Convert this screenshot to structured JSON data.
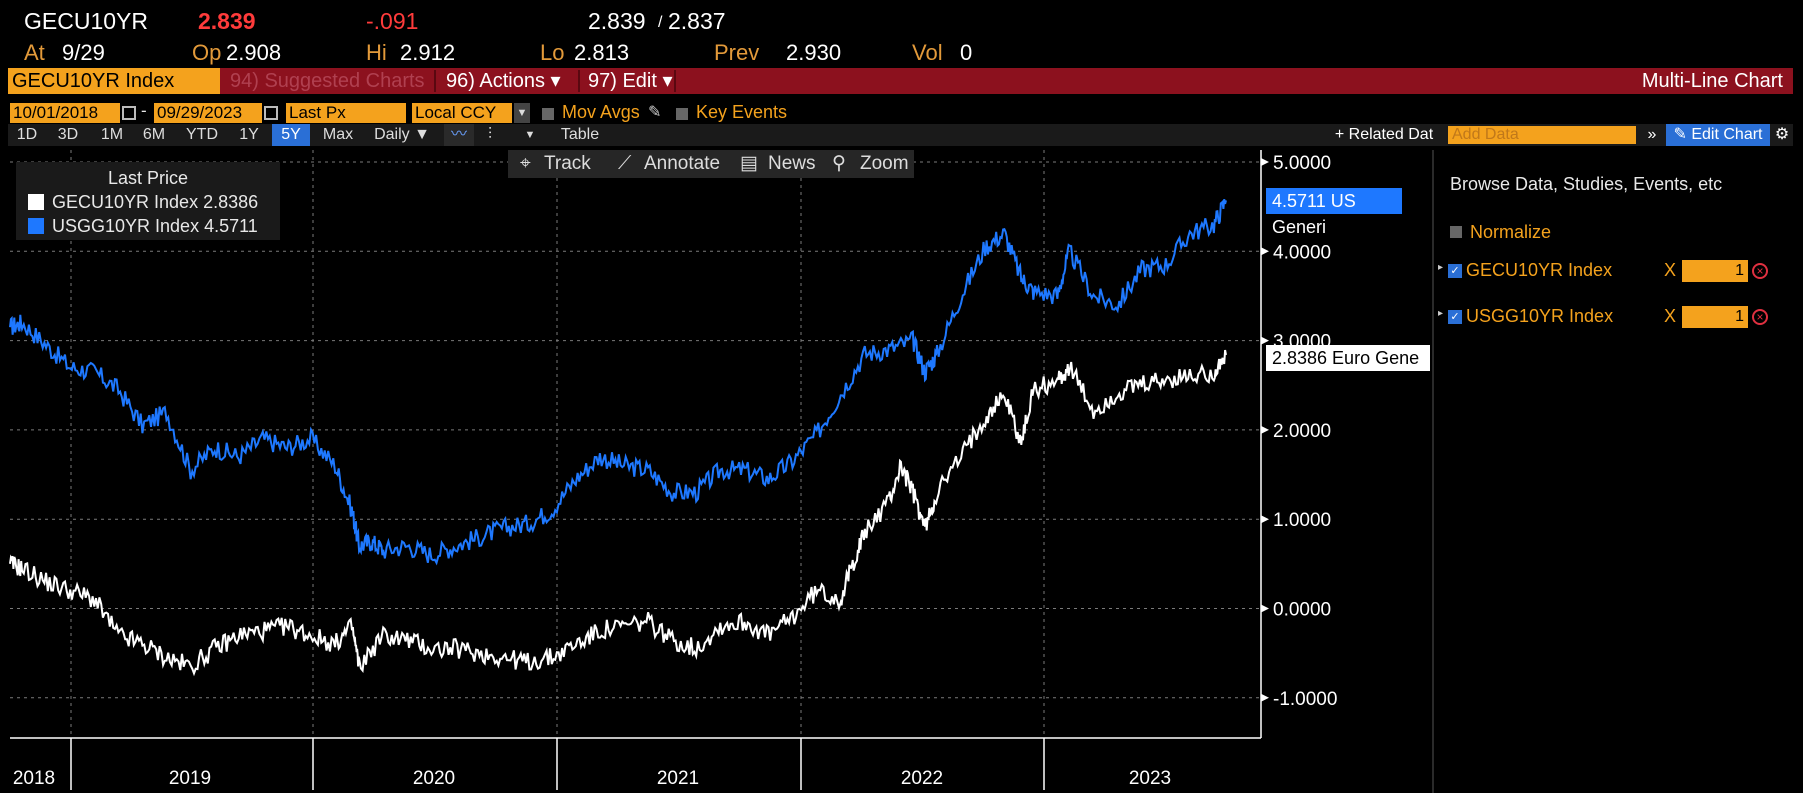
{
  "quote": {
    "ticker": "GECU10YR",
    "last": "2.839",
    "change": "-.091",
    "bid_ask": "2.839",
    "bid_ask_sep": "/",
    "ask": "2.837",
    "at_label": "At",
    "at_value": "9/29",
    "open_label": "Op",
    "open_value": "2.908",
    "high_label": "Hi",
    "high_value": "2.912",
    "low_label": "Lo",
    "low_value": "2.813",
    "prev_label": "Prev",
    "prev_value": "2.930",
    "vol_label": "Vol",
    "vol_value": "0"
  },
  "function_bar": {
    "security": "GECU10YR Index",
    "suggested": "94) Suggested Charts",
    "actions": "96) Actions ▾",
    "edit": "97) Edit ▾",
    "title": "Multi-Line Chart"
  },
  "controls": {
    "start_date": "10/01/2018",
    "dash": "-",
    "end_date": "09/29/2023",
    "field": "Last Px",
    "currency": "Local CCY",
    "mov_avgs": "Mov Avgs",
    "key_events": "Key Events"
  },
  "periods": [
    "1D",
    "3D",
    "1M",
    "6M",
    "YTD",
    "1Y",
    "5Y",
    "Max"
  ],
  "selected_period": "5Y",
  "frequency": "Daily ▼",
  "table_label": "Table",
  "related_data": "+ Related Dat",
  "add_data_placeholder": "Add Data",
  "edit_chart": "✎ Edit Chart",
  "chart_toolbar": {
    "track": "Track",
    "annotate": "Annotate",
    "news": "News",
    "zoom": "Zoom"
  },
  "legend": {
    "title": "Last Price",
    "items": [
      {
        "label": "GECU10YR Index 2.8386",
        "color": "#ffffff"
      },
      {
        "label": "USGG10YR Index 4.5711",
        "color": "#1e78ff"
      }
    ]
  },
  "value_tags": {
    "us": "4.5711 US Generi",
    "eu": "2.8386 Euro Gene"
  },
  "right_panel": {
    "browse": "Browse Data, Studies, Events, etc",
    "normalize": "Normalize",
    "series": [
      {
        "name": "GECU10YR Index",
        "x": "X",
        "factor": "1"
      },
      {
        "name": "USGG10YR Index",
        "x": "X",
        "factor": "1"
      }
    ]
  },
  "chart_data": {
    "type": "line",
    "y_ticks": [
      "5.0000",
      "4.0000",
      "3.0000",
      "2.0000",
      "1.0000",
      "0.0000",
      "-1.0000"
    ],
    "ylim": [
      -1.4,
      5.1
    ],
    "x_labels": [
      "2018",
      "2019",
      "2020",
      "2021",
      "2022",
      "2023"
    ],
    "xlim": [
      2018.75,
      2023.85
    ],
    "grid": true,
    "series": [
      {
        "name": "USGG10YR Index",
        "color": "#1e78ff",
        "x": [
          2018.75,
          2018.8,
          2018.9,
          2019.0,
          2019.1,
          2019.2,
          2019.3,
          2019.4,
          2019.5,
          2019.6,
          2019.7,
          2019.8,
          2019.9,
          2020.0,
          2020.1,
          2020.17,
          2020.2,
          2020.25,
          2020.3,
          2020.4,
          2020.5,
          2020.6,
          2020.7,
          2020.8,
          2020.9,
          2021.0,
          2021.1,
          2021.2,
          2021.3,
          2021.4,
          2021.5,
          2021.6,
          2021.7,
          2021.8,
          2021.9,
          2022.0,
          2022.1,
          2022.2,
          2022.3,
          2022.4,
          2022.5,
          2022.55,
          2022.6,
          2022.7,
          2022.8,
          2022.88,
          2022.95,
          2023.0,
          2023.1,
          2023.15,
          2023.25,
          2023.35,
          2023.45,
          2023.55,
          2023.65,
          2023.75,
          2023.8
        ],
        "values": [
          3.15,
          3.2,
          2.95,
          2.7,
          2.65,
          2.45,
          2.05,
          2.2,
          1.55,
          1.8,
          1.7,
          1.9,
          1.8,
          1.9,
          1.6,
          1.1,
          0.7,
          0.75,
          0.65,
          0.7,
          0.6,
          0.7,
          0.8,
          0.9,
          0.95,
          1.1,
          1.45,
          1.7,
          1.6,
          1.55,
          1.3,
          1.3,
          1.55,
          1.55,
          1.45,
          1.65,
          1.95,
          2.4,
          2.85,
          2.9,
          3.0,
          2.65,
          2.85,
          3.5,
          4.05,
          4.2,
          3.7,
          3.55,
          3.5,
          4.0,
          3.5,
          3.4,
          3.8,
          3.85,
          4.2,
          4.3,
          4.57
        ]
      },
      {
        "name": "GECU10YR Index",
        "color": "#ffffff",
        "x": [
          2018.75,
          2018.8,
          2018.9,
          2019.0,
          2019.1,
          2019.2,
          2019.3,
          2019.4,
          2019.5,
          2019.6,
          2019.7,
          2019.8,
          2019.9,
          2020.0,
          2020.1,
          2020.17,
          2020.2,
          2020.3,
          2020.4,
          2020.5,
          2020.6,
          2020.7,
          2020.8,
          2020.9,
          2021.0,
          2021.1,
          2021.2,
          2021.3,
          2021.4,
          2021.5,
          2021.6,
          2021.7,
          2021.8,
          2021.9,
          2022.0,
          2022.1,
          2022.2,
          2022.25,
          2022.3,
          2022.4,
          2022.45,
          2022.5,
          2022.55,
          2022.6,
          2022.7,
          2022.8,
          2022.88,
          2022.95,
          2023.0,
          2023.1,
          2023.15,
          2023.25,
          2023.35,
          2023.45,
          2023.55,
          2023.65,
          2023.75,
          2023.8
        ],
        "values": [
          0.5,
          0.45,
          0.3,
          0.2,
          0.1,
          -0.3,
          -0.4,
          -0.55,
          -0.65,
          -0.45,
          -0.3,
          -0.25,
          -0.2,
          -0.3,
          -0.4,
          -0.2,
          -0.65,
          -0.3,
          -0.35,
          -0.45,
          -0.45,
          -0.5,
          -0.55,
          -0.6,
          -0.55,
          -0.4,
          -0.25,
          -0.2,
          -0.15,
          -0.35,
          -0.45,
          -0.2,
          -0.15,
          -0.3,
          -0.1,
          0.2,
          0.1,
          0.5,
          0.85,
          1.2,
          1.6,
          1.3,
          0.9,
          1.3,
          1.7,
          2.15,
          2.4,
          1.85,
          2.45,
          2.55,
          2.7,
          2.2,
          2.4,
          2.5,
          2.55,
          2.6,
          2.65,
          2.84
        ]
      }
    ]
  }
}
